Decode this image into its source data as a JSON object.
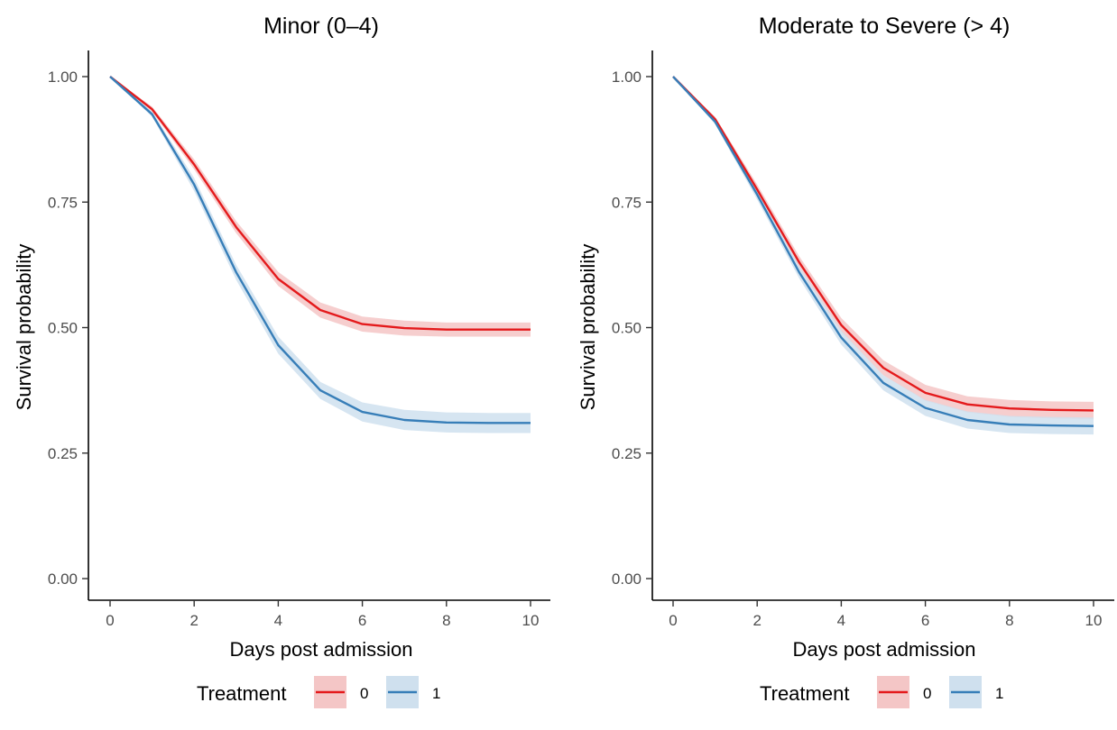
{
  "colors": {
    "treatment_0": "#e41a1c",
    "treatment_0_band": "#f4c6c6",
    "treatment_1": "#377eb8",
    "treatment_1_band": "#cfe0ee"
  },
  "chart_data": [
    {
      "type": "line",
      "title": "Minor (0–4)",
      "xlabel": "Days post admission",
      "ylabel": "Survival probability",
      "xlim": [
        0,
        10
      ],
      "ylim": [
        0,
        1
      ],
      "xticks": [
        0,
        2,
        4,
        6,
        8,
        10
      ],
      "xtick_labels": [
        "0",
        "2",
        "4",
        "6",
        "8",
        "10"
      ],
      "yticks": [
        0,
        0.25,
        0.5,
        0.75,
        1
      ],
      "ytick_labels": [
        "0.00",
        "0.25",
        "0.50",
        "0.75",
        "1.00"
      ],
      "grid": false,
      "legend": {
        "title": "Treatment",
        "position": "bottom",
        "labels": [
          "0",
          "1"
        ]
      },
      "x": [
        0,
        1,
        2,
        3,
        4,
        5,
        6,
        7,
        8,
        9,
        10
      ],
      "series": [
        {
          "name": "0",
          "values": [
            1.0,
            0.935,
            0.825,
            0.7,
            0.597,
            0.535,
            0.507,
            0.499,
            0.496,
            0.496,
            0.496
          ],
          "lower": [
            1.0,
            0.93,
            0.815,
            0.688,
            0.583,
            0.52,
            0.492,
            0.484,
            0.482,
            0.482,
            0.482
          ],
          "upper": [
            1.0,
            0.94,
            0.835,
            0.712,
            0.611,
            0.55,
            0.522,
            0.514,
            0.51,
            0.51,
            0.51
          ]
        },
        {
          "name": "1",
          "values": [
            1.0,
            0.925,
            0.785,
            0.61,
            0.465,
            0.375,
            0.332,
            0.316,
            0.311,
            0.31,
            0.31
          ],
          "lower": [
            1.0,
            0.92,
            0.772,
            0.595,
            0.448,
            0.358,
            0.313,
            0.296,
            0.291,
            0.29,
            0.29
          ],
          "upper": [
            1.0,
            0.93,
            0.798,
            0.625,
            0.482,
            0.392,
            0.351,
            0.336,
            0.331,
            0.33,
            0.33
          ]
        }
      ]
    },
    {
      "type": "line",
      "title": "Moderate to Severe (> 4)",
      "xlabel": "Days post admission",
      "ylabel": "Survival probability",
      "xlim": [
        0,
        10
      ],
      "ylim": [
        0,
        1
      ],
      "xticks": [
        0,
        2,
        4,
        6,
        8,
        10
      ],
      "xtick_labels": [
        "0",
        "2",
        "4",
        "6",
        "8",
        "10"
      ],
      "yticks": [
        0,
        0.25,
        0.5,
        0.75,
        1
      ],
      "ytick_labels": [
        "0.00",
        "0.25",
        "0.50",
        "0.75",
        "1.00"
      ],
      "grid": false,
      "legend": {
        "title": "Treatment",
        "position": "bottom",
        "labels": [
          "0",
          "1"
        ]
      },
      "x": [
        0,
        1,
        2,
        3,
        4,
        5,
        6,
        7,
        8,
        9,
        10
      ],
      "series": [
        {
          "name": "0",
          "values": [
            1.0,
            0.915,
            0.775,
            0.63,
            0.505,
            0.42,
            0.37,
            0.347,
            0.339,
            0.336,
            0.335
          ],
          "lower": [
            1.0,
            0.91,
            0.765,
            0.618,
            0.491,
            0.405,
            0.354,
            0.331,
            0.322,
            0.319,
            0.318
          ],
          "upper": [
            1.0,
            0.92,
            0.785,
            0.642,
            0.519,
            0.435,
            0.386,
            0.363,
            0.356,
            0.353,
            0.352
          ]
        },
        {
          "name": "1",
          "values": [
            1.0,
            0.91,
            0.765,
            0.61,
            0.48,
            0.39,
            0.34,
            0.316,
            0.307,
            0.305,
            0.304
          ],
          "lower": [
            1.0,
            0.905,
            0.755,
            0.598,
            0.466,
            0.375,
            0.324,
            0.299,
            0.29,
            0.288,
            0.287
          ],
          "upper": [
            1.0,
            0.915,
            0.775,
            0.622,
            0.494,
            0.405,
            0.356,
            0.333,
            0.324,
            0.322,
            0.321
          ]
        }
      ]
    }
  ]
}
